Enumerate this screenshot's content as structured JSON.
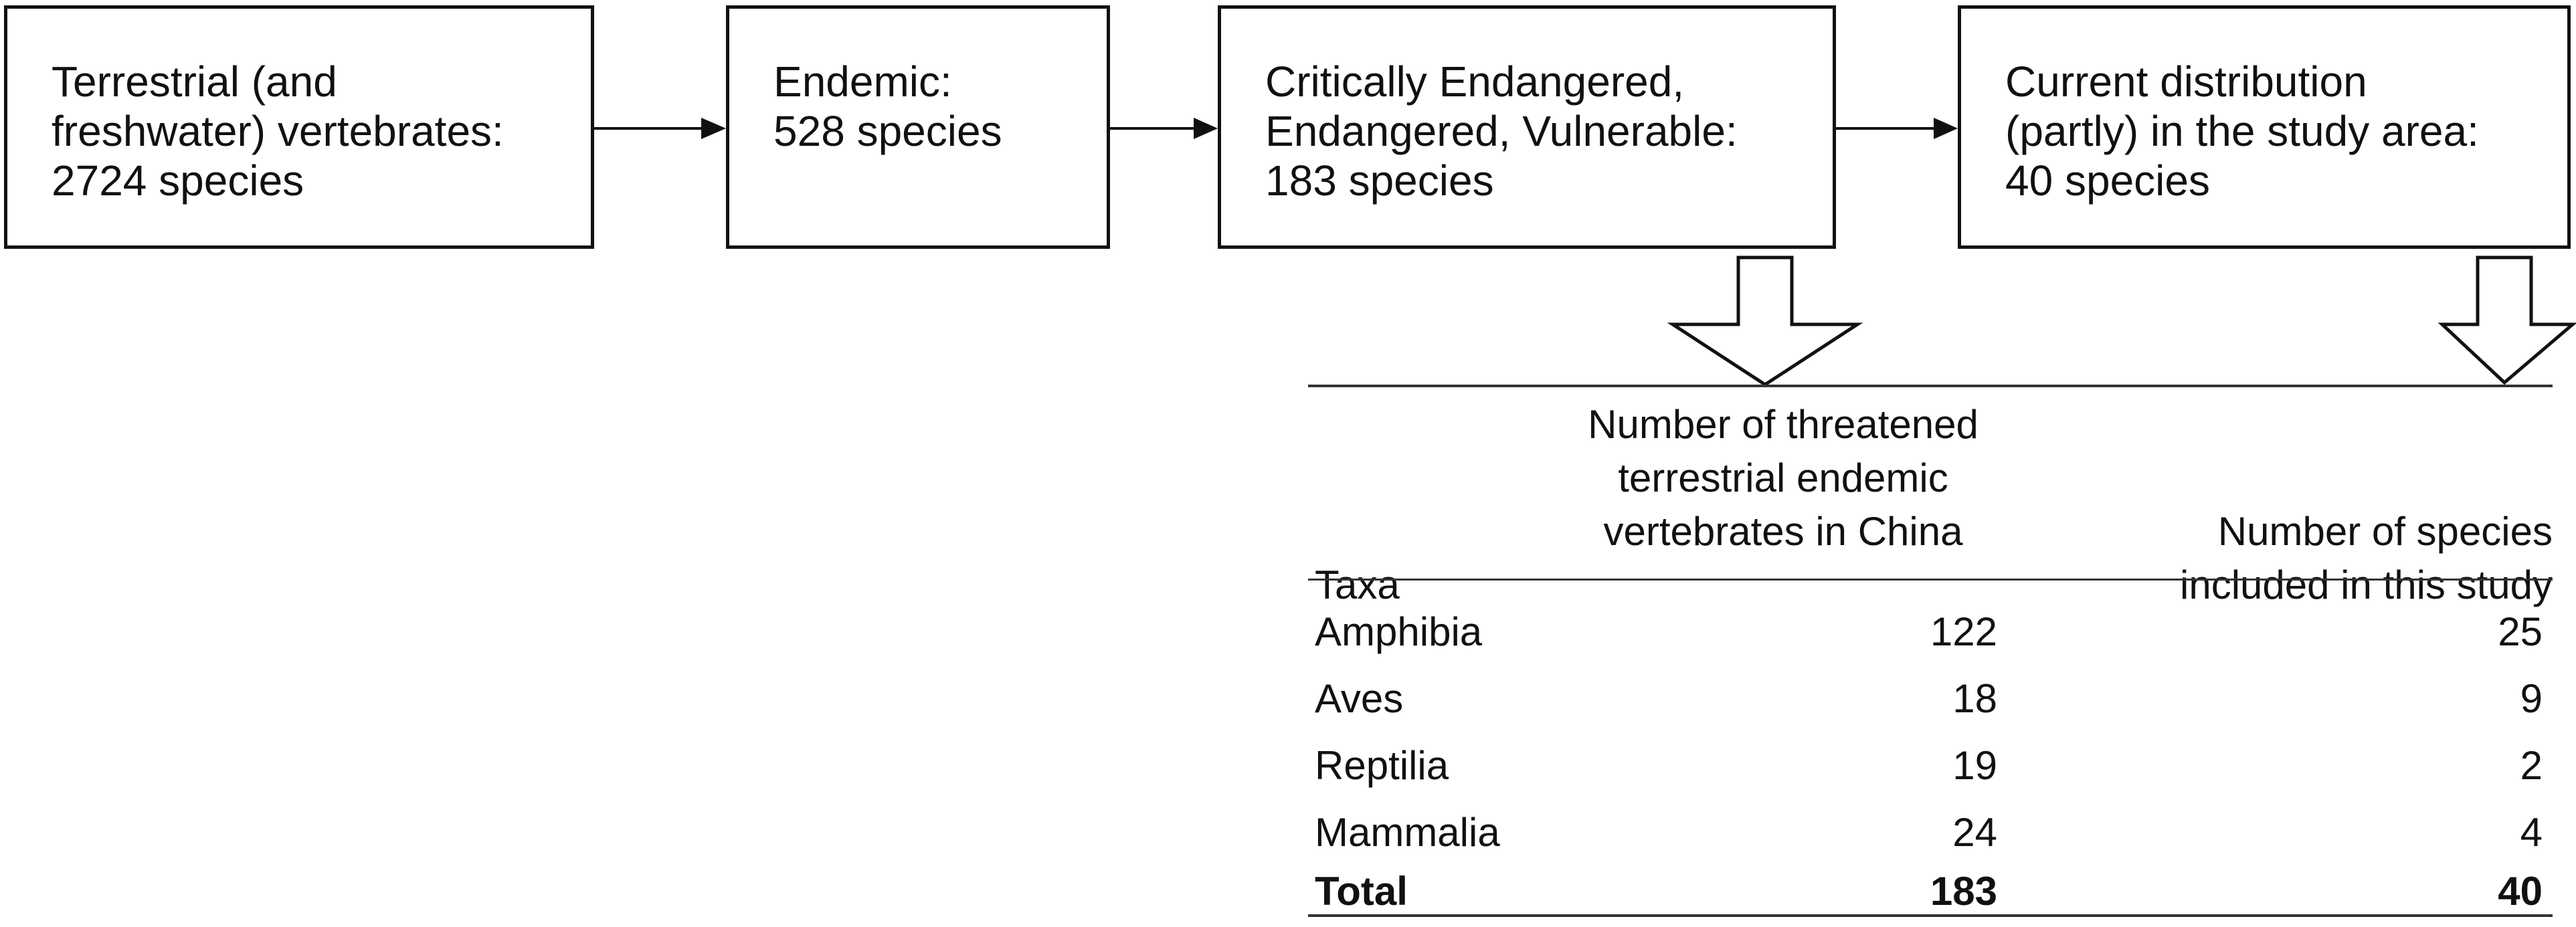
{
  "flow": {
    "box1": "Terrestrial (and\nfreshwater) vertebrates:\n2724 species",
    "box2": "Endemic:\n528 species",
    "box3": "Critically Endangered,\nEndangered, Vulnerable:\n183 species",
    "box4": "Current distribution\n(partly) in the study area:\n40 species"
  },
  "table": {
    "headers": {
      "taxa": "Taxa",
      "threatened": "Number of threatened\nterrestrial endemic\nvertebrates in China",
      "included": "Number of species\nincluded in this study"
    },
    "rows": [
      {
        "taxa": "Amphibia",
        "threatened": "122",
        "included": "25"
      },
      {
        "taxa": "Aves",
        "threatened": "18",
        "included": "9"
      },
      {
        "taxa": "Reptilia",
        "threatened": "19",
        "included": "2"
      },
      {
        "taxa": "Mammalia",
        "threatened": "24",
        "included": "4"
      }
    ],
    "total": {
      "taxa": "Total",
      "threatened": "183",
      "included": "40"
    }
  },
  "colors": {
    "line": "#111111",
    "background": "#ffffff"
  },
  "icons": [
    "arrow-right-icon",
    "hollow-down-arrow-icon"
  ]
}
